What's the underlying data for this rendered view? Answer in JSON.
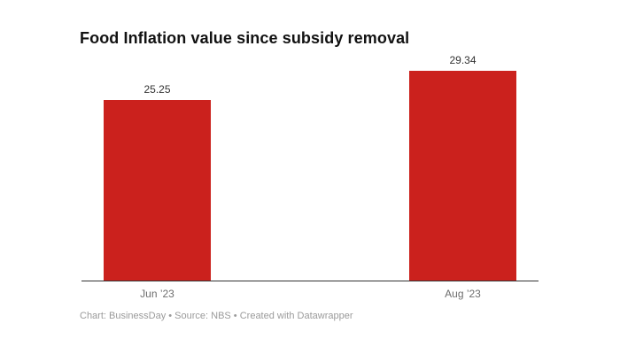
{
  "header": {
    "title": "Food Inflation value since subsidy removal"
  },
  "chart_data": {
    "type": "bar",
    "title": "Food Inflation value since subsidy removal",
    "categories": [
      "Jun ’23",
      "Aug ’23"
    ],
    "values": [
      25.25,
      29.34
    ],
    "value_labels": [
      "25.25",
      "29.34"
    ],
    "xlabel": "",
    "ylabel": "",
    "ylim": [
      0,
      29.34
    ],
    "grid": false,
    "legend": "none",
    "bar_color": "#cb211d",
    "axis_color": "#333333"
  },
  "footer": {
    "credit": "Chart: BusinessDay • Source: NBS • Created with Datawrapper"
  }
}
